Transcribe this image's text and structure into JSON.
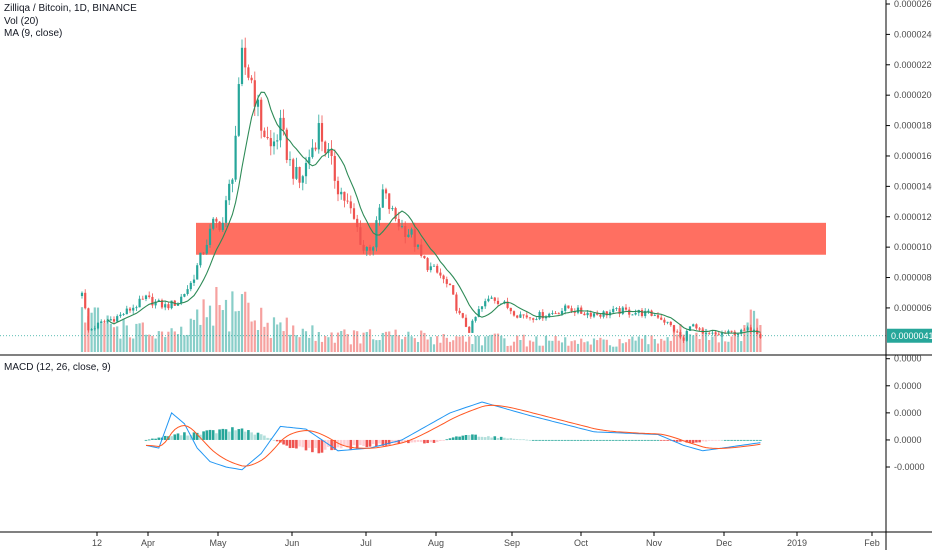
{
  "legend": {
    "symbol": "Zilliqa / Bitcoin, 1D, BINANCE",
    "vol": "Vol (20)",
    "ma": "MA (9, close)",
    "macd": "MACD (12, 26, close, 9)"
  },
  "colors": {
    "up": "#26a69a",
    "down": "#ef5350",
    "ma_line": "#2e8b57",
    "zone": "#ff6f61",
    "macd_line": "#2196f3",
    "signal_line": "#ff5722",
    "hist_up_strong": "#26a69a",
    "hist_up_weak": "#b2dfdb",
    "hist_down_strong": "#ef5350",
    "hist_down_weak": "#ffcdd2",
    "price_tag": "#26a69a"
  },
  "chart_data": [
    {
      "type": "candlestick",
      "title": "Zilliqa / Bitcoin, 1D, BINANCE",
      "x_axis_labels": [
        "12",
        "Apr",
        "May",
        "Jun",
        "Jul",
        "Aug",
        "Sep",
        "Oct",
        "Nov",
        "Dec",
        "2019",
        "Feb"
      ],
      "y_ticks": [
        "0.00002600",
        "0.00002400",
        "0.00002200",
        "0.00002000",
        "0.00001800",
        "0.00001600",
        "0.00001400",
        "0.00001200",
        "0.00001000",
        "0.00000800",
        "0.00000600"
      ],
      "ylim": [
        3.1e-06,
        2.6e-05
      ],
      "current_price_label": "0.00000417",
      "current_price": 4.17e-06,
      "resistance_zone": {
        "low": 9.5e-06,
        "high": 1.16e-05
      },
      "price_path": [
        [
          0,
          7.2e-06
        ],
        [
          2,
          4.5e-06
        ],
        [
          6,
          5e-06
        ],
        [
          12,
          5.5e-06
        ],
        [
          20,
          6.6e-06
        ],
        [
          26,
          6.1e-06
        ],
        [
          30,
          6.4e-06
        ],
        [
          34,
          7.6e-06
        ],
        [
          38,
          9.8e-06
        ],
        [
          41,
          1.15e-05
        ],
        [
          44,
          1.16e-05
        ],
        [
          47,
          1.5e-05
        ],
        [
          50,
          2.23e-05
        ],
        [
          53,
          2.1e-05
        ],
        [
          56,
          1.8e-05
        ],
        [
          59,
          1.65e-05
        ],
        [
          62,
          1.78e-05
        ],
        [
          65,
          1.55e-05
        ],
        [
          68,
          1.42e-05
        ],
        [
          71,
          1.6e-05
        ],
        [
          74,
          1.78e-05
        ],
        [
          77,
          1.6e-05
        ],
        [
          80,
          1.4e-05
        ],
        [
          83,
          1.28e-05
        ],
        [
          86,
          1.12e-05
        ],
        [
          88,
          9.8e-06
        ],
        [
          91,
          1.02e-05
        ],
        [
          94,
          1.36e-05
        ],
        [
          97,
          1.22e-05
        ],
        [
          100,
          1.13e-05
        ],
        [
          103,
          1.08e-05
        ],
        [
          106,
          9.3e-06
        ],
        [
          109,
          8.6e-06
        ],
        [
          112,
          8.1e-06
        ],
        [
          115,
          7.2e-06
        ],
        [
          118,
          5.5e-06
        ],
        [
          121,
          4.5e-06
        ],
        [
          124,
          5.8e-06
        ],
        [
          128,
          6.8e-06
        ],
        [
          132,
          6.2e-06
        ],
        [
          136,
          5.6e-06
        ],
        [
          140,
          5.4e-06
        ],
        [
          146,
          5.6e-06
        ],
        [
          152,
          6e-06
        ],
        [
          156,
          5.7e-06
        ],
        [
          162,
          5.6e-06
        ],
        [
          168,
          5.8e-06
        ],
        [
          174,
          5.7e-06
        ],
        [
          180,
          5.5e-06
        ],
        [
          184,
          4.8e-06
        ],
        [
          188,
          3.8e-06
        ],
        [
          190,
          5e-06
        ],
        [
          194,
          4.2e-06
        ],
        [
          200,
          4.3e-06
        ],
        [
          206,
          4.4e-06
        ],
        [
          210,
          4.7e-06
        ],
        [
          212,
          4.2e-06
        ]
      ],
      "volume_profile": [
        [
          0,
          0.5
        ],
        [
          2,
          0.45
        ],
        [
          20,
          0.25
        ],
        [
          30,
          0.2
        ],
        [
          38,
          0.45
        ],
        [
          41,
          0.6
        ],
        [
          45,
          0.5
        ],
        [
          50,
          0.75
        ],
        [
          53,
          0.45
        ],
        [
          60,
          0.35
        ],
        [
          70,
          0.25
        ],
        [
          85,
          0.2
        ],
        [
          100,
          0.2
        ],
        [
          120,
          0.18
        ],
        [
          140,
          0.15
        ],
        [
          160,
          0.12
        ],
        [
          180,
          0.15
        ],
        [
          188,
          0.35
        ],
        [
          195,
          0.2
        ],
        [
          205,
          0.15
        ],
        [
          210,
          0.45
        ],
        [
          212,
          0.3
        ]
      ]
    },
    {
      "type": "macd",
      "title": "MACD (12, 26, close, 9)",
      "y_ticks": [
        "0.0000",
        "0.0000",
        "0.0000",
        "0.0000",
        "-0.0000"
      ],
      "ylim": [
        -3.4e-06,
        3.1e-06
      ],
      "macd_path": [
        [
          0,
          -1e-06
        ],
        [
          4,
          0.0
        ],
        [
          8,
          8e-07
        ],
        [
          14,
          5e-07
        ],
        [
          20,
          -2e-07
        ],
        [
          24,
          -3e-07
        ],
        [
          28,
          1e-06
        ],
        [
          32,
          6e-07
        ],
        [
          36,
          -3e-07
        ],
        [
          40,
          -8e-07
        ],
        [
          45,
          -1e-06
        ],
        [
          50,
          -1.1e-06
        ],
        [
          56,
          -5e-07
        ],
        [
          62,
          5e-07
        ],
        [
          70,
          4e-07
        ],
        [
          80,
          -4e-07
        ],
        [
          90,
          -3e-07
        ],
        [
          100,
          0.0
        ],
        [
          115,
          1e-06
        ],
        [
          125,
          1.4e-06
        ],
        [
          140,
          9e-07
        ],
        [
          160,
          3e-07
        ],
        [
          180,
          2e-07
        ],
        [
          188,
          -2e-07
        ],
        [
          194,
          -4e-07
        ],
        [
          200,
          -3e-07
        ],
        [
          212,
          -1e-07
        ]
      ],
      "histogram_path": [
        [
          0,
          0.0
        ],
        [
          20,
          0.0
        ],
        [
          30,
          2e-07
        ],
        [
          40,
          3e-07
        ],
        [
          50,
          4e-07
        ],
        [
          58,
          1e-07
        ],
        [
          66,
          -3e-07
        ],
        [
          74,
          -4e-07
        ],
        [
          82,
          -3e-07
        ],
        [
          92,
          -2e-07
        ],
        [
          100,
          -1e-07
        ],
        [
          110,
          -1e-07
        ],
        [
          120,
          2e-07
        ],
        [
          130,
          1e-07
        ],
        [
          140,
          0.0
        ],
        [
          160,
          0.0
        ],
        [
          180,
          0.0
        ],
        [
          190,
          -1e-07
        ],
        [
          200,
          0.0
        ],
        [
          212,
          0.0
        ]
      ]
    }
  ]
}
